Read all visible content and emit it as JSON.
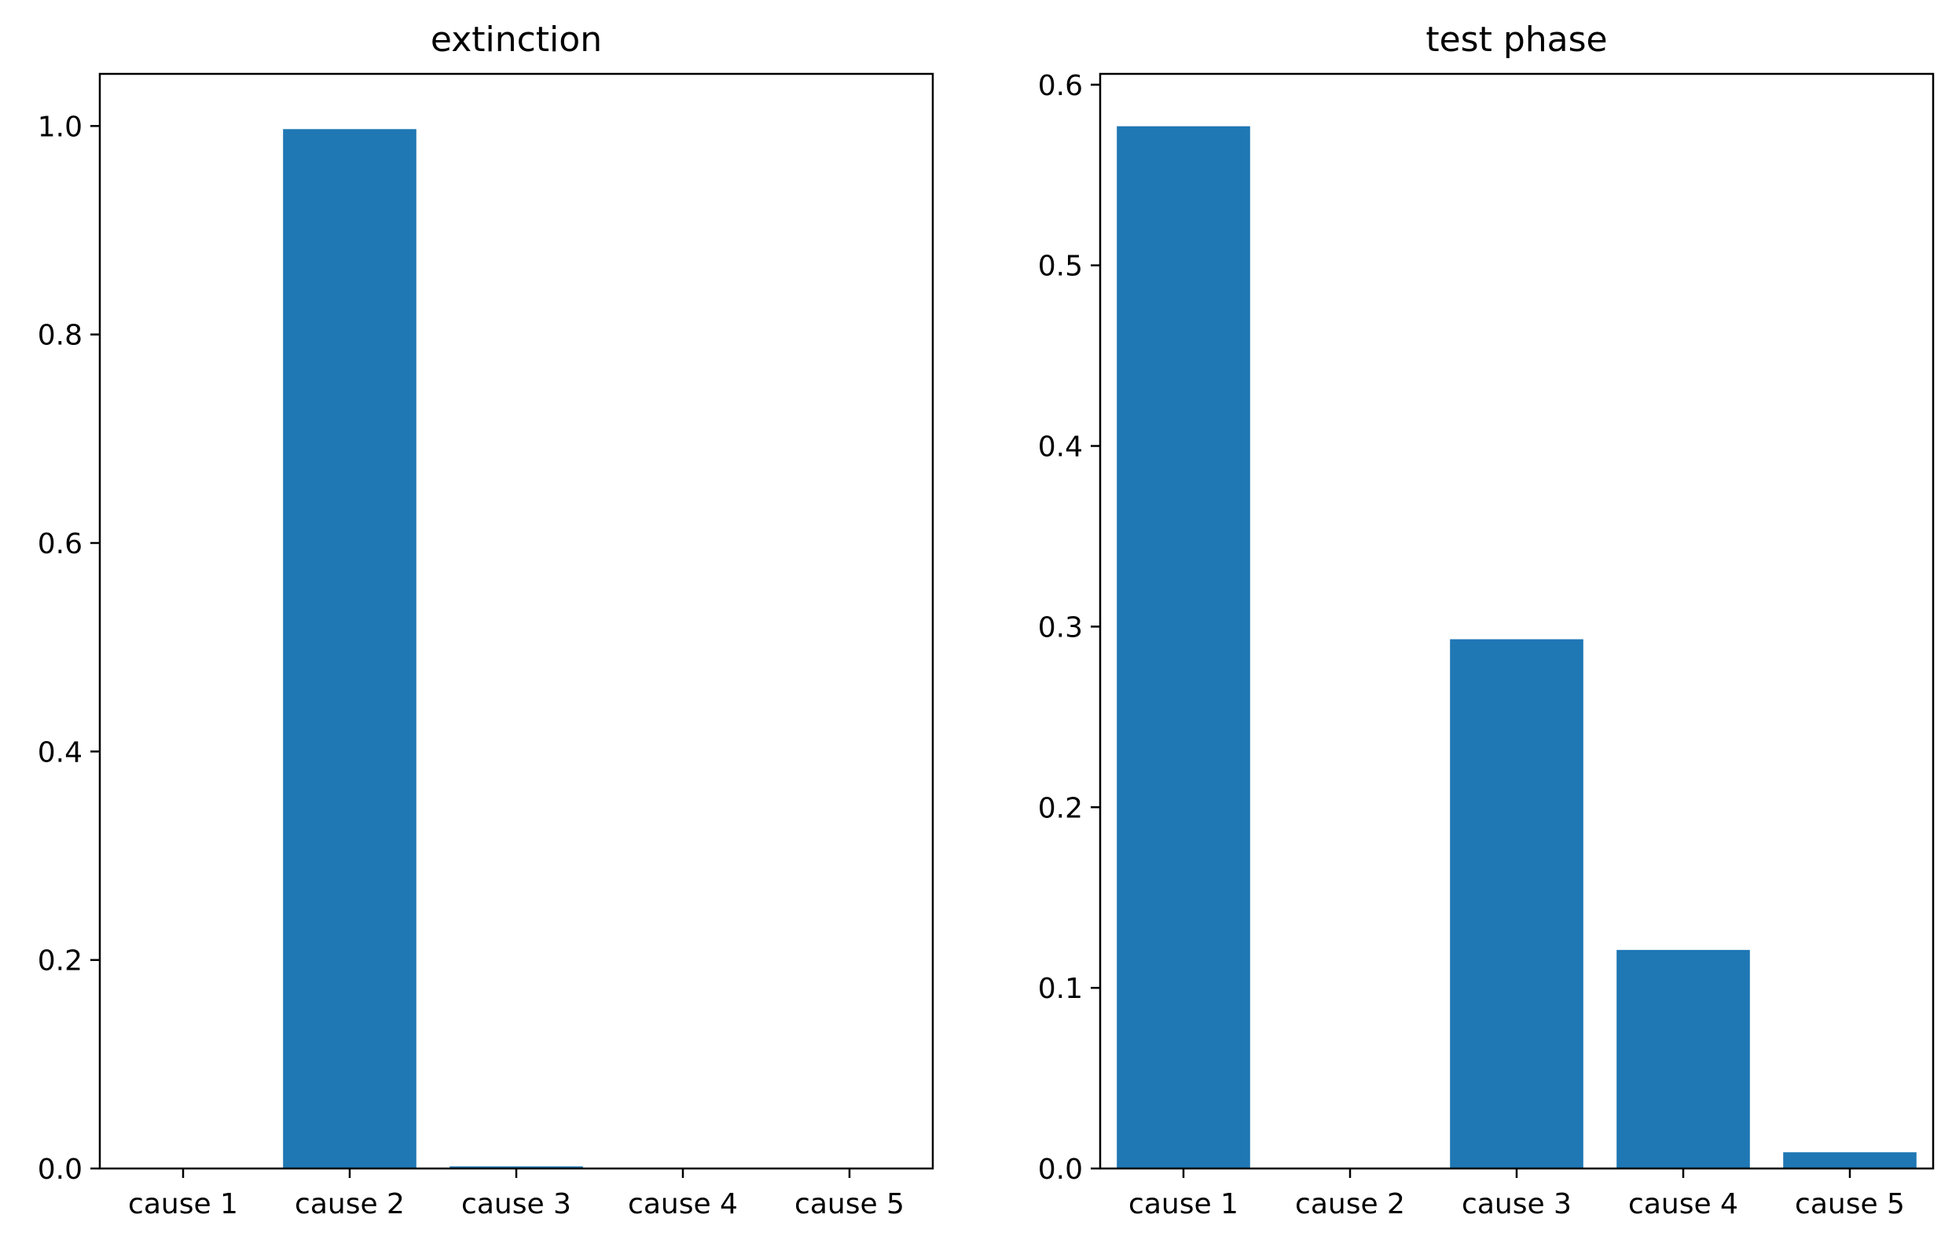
{
  "chart_data": [
    {
      "type": "bar",
      "title": "extinction",
      "xlabel": "",
      "ylabel": "",
      "categories": [
        "cause 1",
        "cause 2",
        "cause 3",
        "cause 4",
        "cause 5"
      ],
      "values": [
        0.0,
        0.997,
        0.002,
        0.0,
        0.0
      ],
      "ylim": [
        0,
        1.05
      ],
      "yticks": [
        0.0,
        0.2,
        0.4,
        0.6,
        0.8,
        1.0
      ],
      "ytick_labels": [
        "0.0",
        "0.2",
        "0.4",
        "0.6",
        "0.8",
        "1.0"
      ],
      "bar_color": "#1f77b4",
      "grid": false,
      "legend": "none"
    },
    {
      "type": "bar",
      "title": "test phase",
      "xlabel": "",
      "ylabel": "",
      "categories": [
        "cause 1",
        "cause 2",
        "cause 3",
        "cause 4",
        "cause 5"
      ],
      "values": [
        0.577,
        0.0,
        0.293,
        0.121,
        0.009
      ],
      "ylim": [
        0,
        0.606
      ],
      "yticks": [
        0.0,
        0.1,
        0.2,
        0.3,
        0.4,
        0.5,
        0.6
      ],
      "ytick_labels": [
        "0.0",
        "0.1",
        "0.2",
        "0.3",
        "0.4",
        "0.5",
        "0.6"
      ],
      "bar_color": "#1f77b4",
      "grid": false,
      "legend": "none"
    }
  ]
}
